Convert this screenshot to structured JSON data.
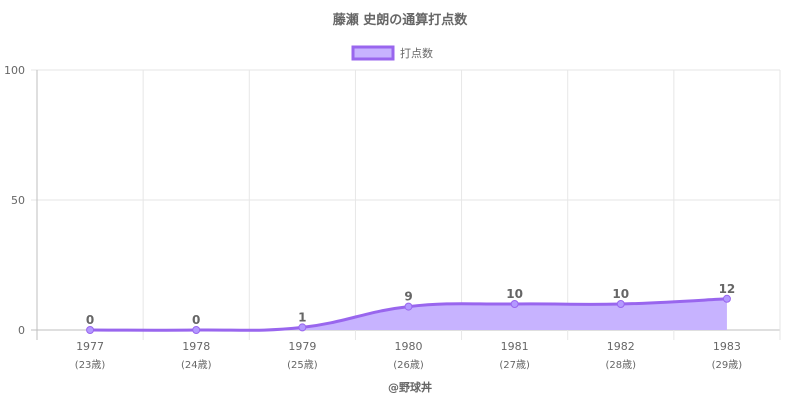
{
  "chart_data": {
    "type": "area",
    "title": "藤瀬 史朗の通算打点数",
    "categories": [
      "1977",
      "1978",
      "1979",
      "1980",
      "1981",
      "1982",
      "1983"
    ],
    "category_sublabels": [
      "(23歳)",
      "(24歳)",
      "(25歳)",
      "(26歳)",
      "(27歳)",
      "(28歳)",
      "(29歳)"
    ],
    "series": [
      {
        "name": "打点数",
        "values": [
          0,
          0,
          1,
          9,
          10,
          10,
          12
        ]
      }
    ],
    "ylim": [
      0,
      100
    ],
    "yticks": [
      0,
      50,
      100
    ],
    "grid": true,
    "legend": "top-center",
    "colors": {
      "line": "#9966ee",
      "fill": "#c7b3ff",
      "point": "#b399ff"
    }
  },
  "footer": "@野球丼"
}
